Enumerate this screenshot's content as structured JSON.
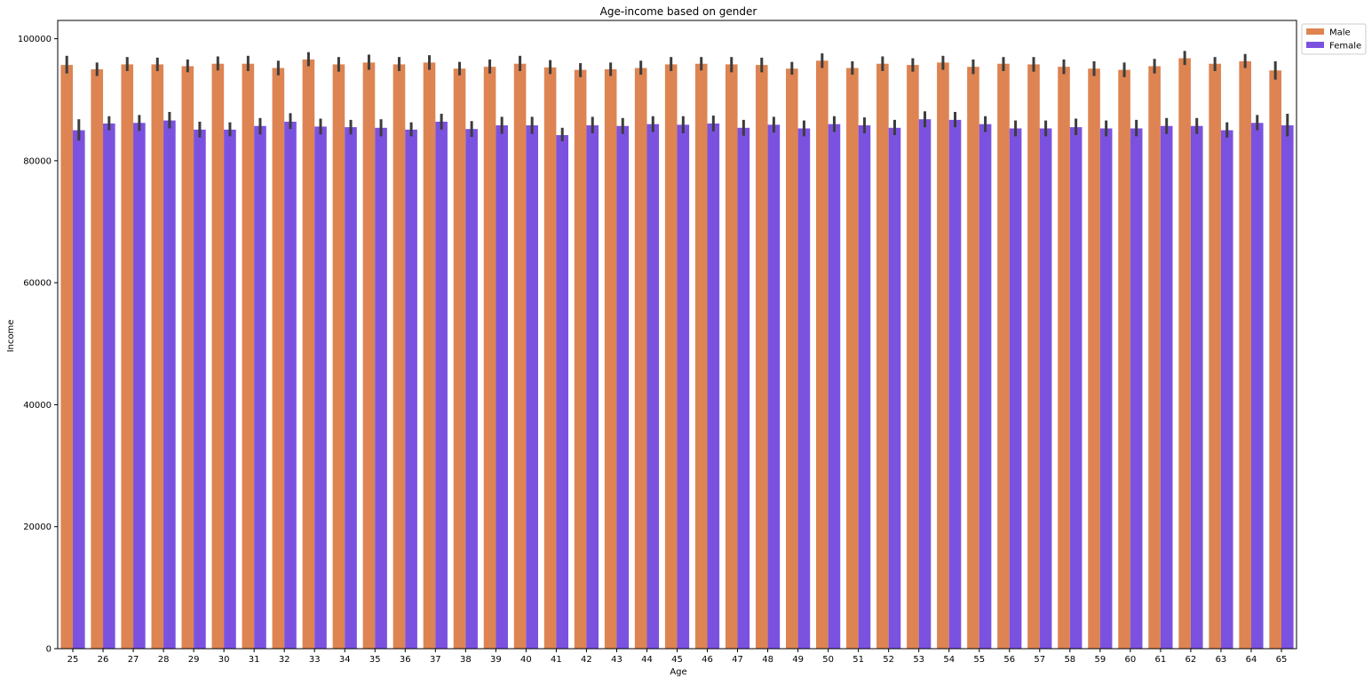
{
  "chart_data": {
    "type": "bar",
    "title": "Age-income based on gender",
    "xlabel": "Age",
    "ylabel": "Income",
    "ylim": [
      0,
      103000
    ],
    "yticks": [
      0,
      20000,
      40000,
      60000,
      80000,
      100000
    ],
    "legend_position": "upper-right-outside",
    "categories": [
      "25",
      "26",
      "27",
      "28",
      "29",
      "30",
      "31",
      "32",
      "33",
      "34",
      "35",
      "36",
      "37",
      "38",
      "39",
      "40",
      "41",
      "42",
      "43",
      "44",
      "45",
      "46",
      "47",
      "48",
      "49",
      "50",
      "51",
      "52",
      "53",
      "54",
      "55",
      "56",
      "57",
      "58",
      "59",
      "60",
      "61",
      "62",
      "63",
      "64",
      "65"
    ],
    "series": [
      {
        "name": "Male",
        "color": "#dd8452",
        "values": [
          95700,
          95000,
          95800,
          95800,
          95500,
          95900,
          95900,
          95200,
          96600,
          95800,
          96100,
          95800,
          96100,
          95100,
          95400,
          95900,
          95300,
          94900,
          95000,
          95200,
          95800,
          95900,
          95800,
          95700,
          95100,
          96400,
          95200,
          95900,
          95700,
          96100,
          95400,
          95900,
          95800,
          95400,
          95100,
          94900,
          95500,
          96800,
          95900,
          96300,
          94800
        ],
        "ci_low": [
          94300,
          93900,
          94700,
          94700,
          94500,
          94800,
          94700,
          94000,
          95500,
          94600,
          94900,
          94700,
          94900,
          94000,
          94300,
          94700,
          94200,
          93700,
          93900,
          94100,
          94700,
          94800,
          94500,
          94500,
          94100,
          95200,
          94100,
          94700,
          94600,
          94900,
          94200,
          94700,
          94600,
          94200,
          93900,
          93700,
          94300,
          95700,
          94700,
          95200,
          93300
        ],
        "ci_high": [
          97200,
          96100,
          97000,
          96900,
          96600,
          97100,
          97200,
          96400,
          97800,
          97000,
          97400,
          97000,
          97300,
          96200,
          96600,
          97200,
          96500,
          96000,
          96100,
          96400,
          97000,
          97000,
          97000,
          96900,
          96200,
          97600,
          96300,
          97100,
          96800,
          97200,
          96600,
          97000,
          97000,
          96600,
          96300,
          96100,
          96700,
          98000,
          97000,
          97500,
          96300
        ]
      },
      {
        "name": "Female",
        "color": "#7b52e0",
        "values": [
          85000,
          86100,
          86200,
          86600,
          85100,
          85100,
          85700,
          86400,
          85600,
          85500,
          85400,
          85100,
          86400,
          85200,
          85800,
          85800,
          84200,
          85800,
          85700,
          86000,
          85900,
          86100,
          85400,
          85900,
          85300,
          86000,
          85800,
          85400,
          86800,
          86700,
          86000,
          85300,
          85300,
          85500,
          85300,
          85300,
          85700,
          85700,
          85000,
          86200,
          85800
        ],
        "ci_low": [
          83300,
          85000,
          84900,
          85300,
          83800,
          84000,
          84300,
          85200,
          84300,
          84300,
          84000,
          84000,
          85100,
          83900,
          84400,
          84400,
          83200,
          84500,
          84400,
          84700,
          84500,
          84800,
          84100,
          84600,
          84000,
          84700,
          84500,
          84200,
          85500,
          85500,
          84700,
          84000,
          84000,
          84200,
          84000,
          84000,
          84400,
          84400,
          83800,
          85000,
          84000
        ],
        "ci_high": [
          86800,
          87300,
          87500,
          88000,
          86400,
          86300,
          87000,
          87800,
          86900,
          86700,
          86800,
          86300,
          87700,
          86500,
          87200,
          87200,
          85400,
          87200,
          87000,
          87300,
          87300,
          87400,
          86700,
          87200,
          86600,
          87300,
          87100,
          86700,
          88100,
          88000,
          87300,
          86600,
          86600,
          86900,
          86600,
          86700,
          87000,
          87000,
          86300,
          87500,
          87700
        ]
      }
    ]
  }
}
